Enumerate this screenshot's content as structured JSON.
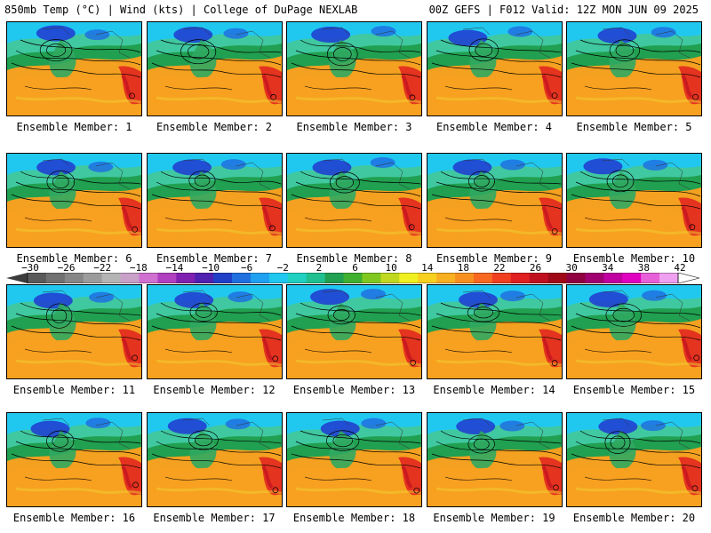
{
  "header": {
    "left_title": "850mb Temp (°C) | Wind (kts) | College of DuPage NEXLAB",
    "right_title": "00Z GEFS | F012 Valid: 12Z MON JUN 09 2025"
  },
  "member_label_prefix": "Ensemble Member:",
  "members": [
    1,
    2,
    3,
    4,
    5,
    6,
    7,
    8,
    9,
    10,
    11,
    12,
    13,
    14,
    15,
    16,
    17,
    18,
    19,
    20
  ],
  "colorbar": {
    "ticks": [
      -30,
      -26,
      -22,
      -18,
      -14,
      -10,
      -6,
      -2,
      2,
      6,
      10,
      14,
      18,
      22,
      26,
      30,
      34,
      38,
      42
    ],
    "colors": [
      "#5a5a5a",
      "#707070",
      "#868686",
      "#9c9c9c",
      "#b4b4b4",
      "#c8a0c8",
      "#d070d0",
      "#b040c0",
      "#8020b0",
      "#5020b0",
      "#2040c8",
      "#2070e0",
      "#20a0f0",
      "#20c8f0",
      "#20d0c0",
      "#20c090",
      "#20a050",
      "#40b030",
      "#80c820",
      "#c0d820",
      "#f0f020",
      "#f8d020",
      "#f8b020",
      "#f89020",
      "#f86820",
      "#f04020",
      "#e02020",
      "#c01020",
      "#a00818",
      "#900040",
      "#a00070",
      "#c000a0",
      "#e000c0",
      "#e860d8",
      "#f0a0f0"
    ]
  },
  "map_colors": {
    "cold": "#2040d0",
    "cool": "#20c8f0",
    "mild": "#20a050",
    "warm": "#f8b020",
    "hot": "#e02020",
    "contour": "#000000"
  }
}
